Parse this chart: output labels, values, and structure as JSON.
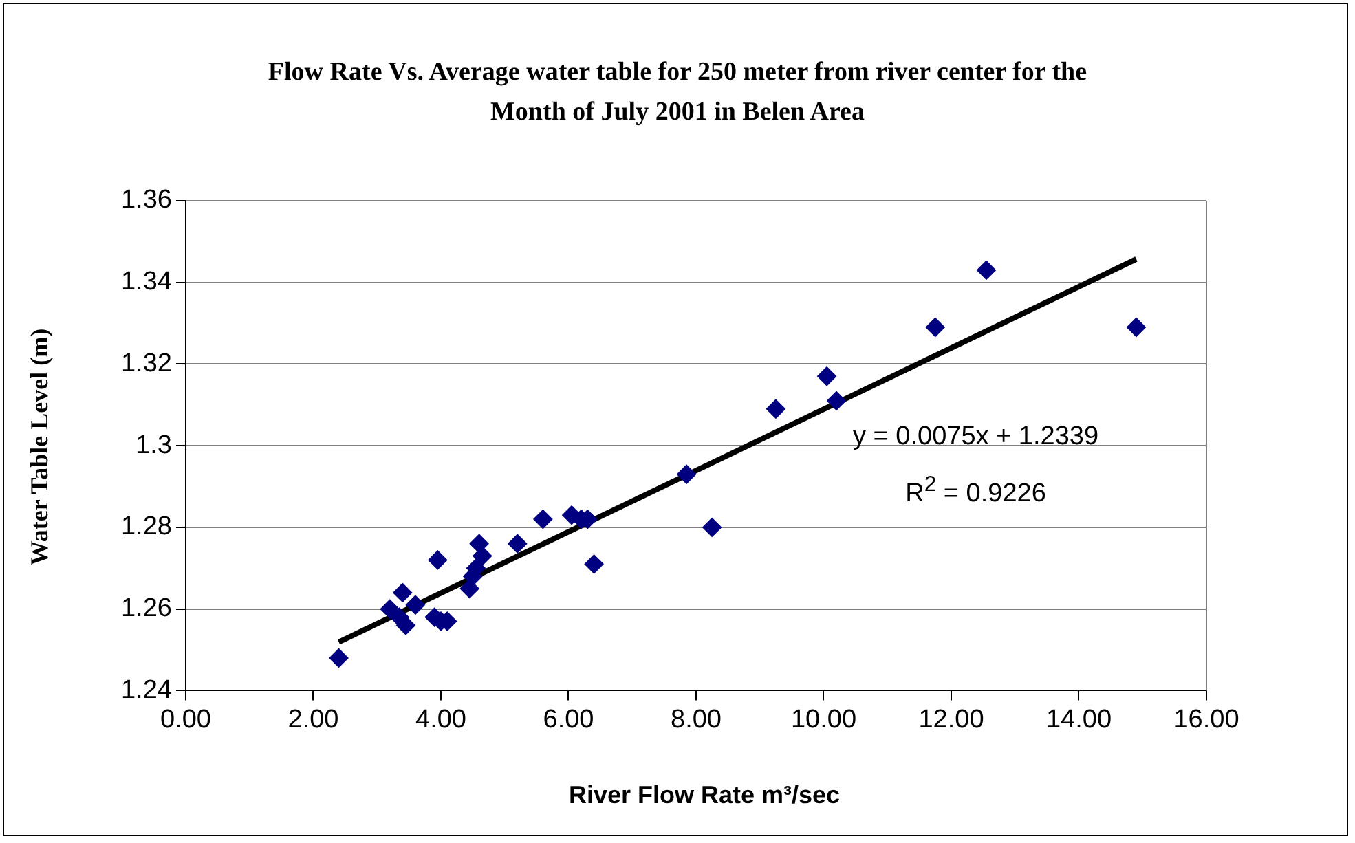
{
  "chart_data": {
    "type": "scatter",
    "title": "Flow Rate Vs. Average water table for 250 meter from river center for the Month of July 2001 in Belen Area",
    "xlabel": "River Flow Rate m³/sec",
    "ylabel": "Water Table Level (m)",
    "series": [
      {
        "color": "#000080",
        "marker": "diamond",
        "x": [
          2.4,
          3.2,
          3.35,
          3.4,
          3.45,
          3.6,
          3.9,
          4.0,
          4.1,
          3.95,
          4.45,
          4.5,
          4.55,
          4.6,
          4.65,
          5.2,
          5.6,
          6.05,
          6.2,
          6.3,
          6.4,
          7.85,
          8.25,
          9.25,
          10.05,
          10.2,
          11.75,
          12.55,
          14.9
        ],
        "values": [
          1.248,
          1.26,
          1.258,
          1.264,
          1.256,
          1.261,
          1.258,
          1.257,
          1.257,
          1.272,
          1.265,
          1.268,
          1.27,
          1.276,
          1.273,
          1.276,
          1.282,
          1.283,
          1.282,
          1.282,
          1.271,
          1.293,
          1.28,
          1.309,
          1.317,
          1.311,
          1.329,
          1.343,
          1.329
        ]
      },
      {
        "type": "line",
        "color": "#000000",
        "marker": "none",
        "x": [
          2.4,
          14.9
        ],
        "values": [
          1.2519,
          1.3457
        ]
      }
    ],
    "xlim": [
      0,
      16
    ],
    "xticks": [
      {
        "value": 0,
        "label": "0.00"
      },
      {
        "value": 2,
        "label": "2.00"
      },
      {
        "value": 4,
        "label": "4.00"
      },
      {
        "value": 6,
        "label": "6.00"
      },
      {
        "value": 8,
        "label": "8.00"
      },
      {
        "value": 10,
        "label": "10.00"
      },
      {
        "value": 12,
        "label": "12.00"
      },
      {
        "value": 14,
        "label": "14.00"
      },
      {
        "value": 16,
        "label": "16.00"
      }
    ],
    "ylim": [
      1.24,
      1.36
    ],
    "yticks": [
      1.24,
      1.26,
      1.28,
      1.3,
      1.32,
      1.34,
      1.36
    ],
    "grid": "y",
    "legend": false,
    "annotations": [
      "y = 0.0075x + 1.2339",
      "R$^{2}$ = 0.9226"
    ]
  }
}
